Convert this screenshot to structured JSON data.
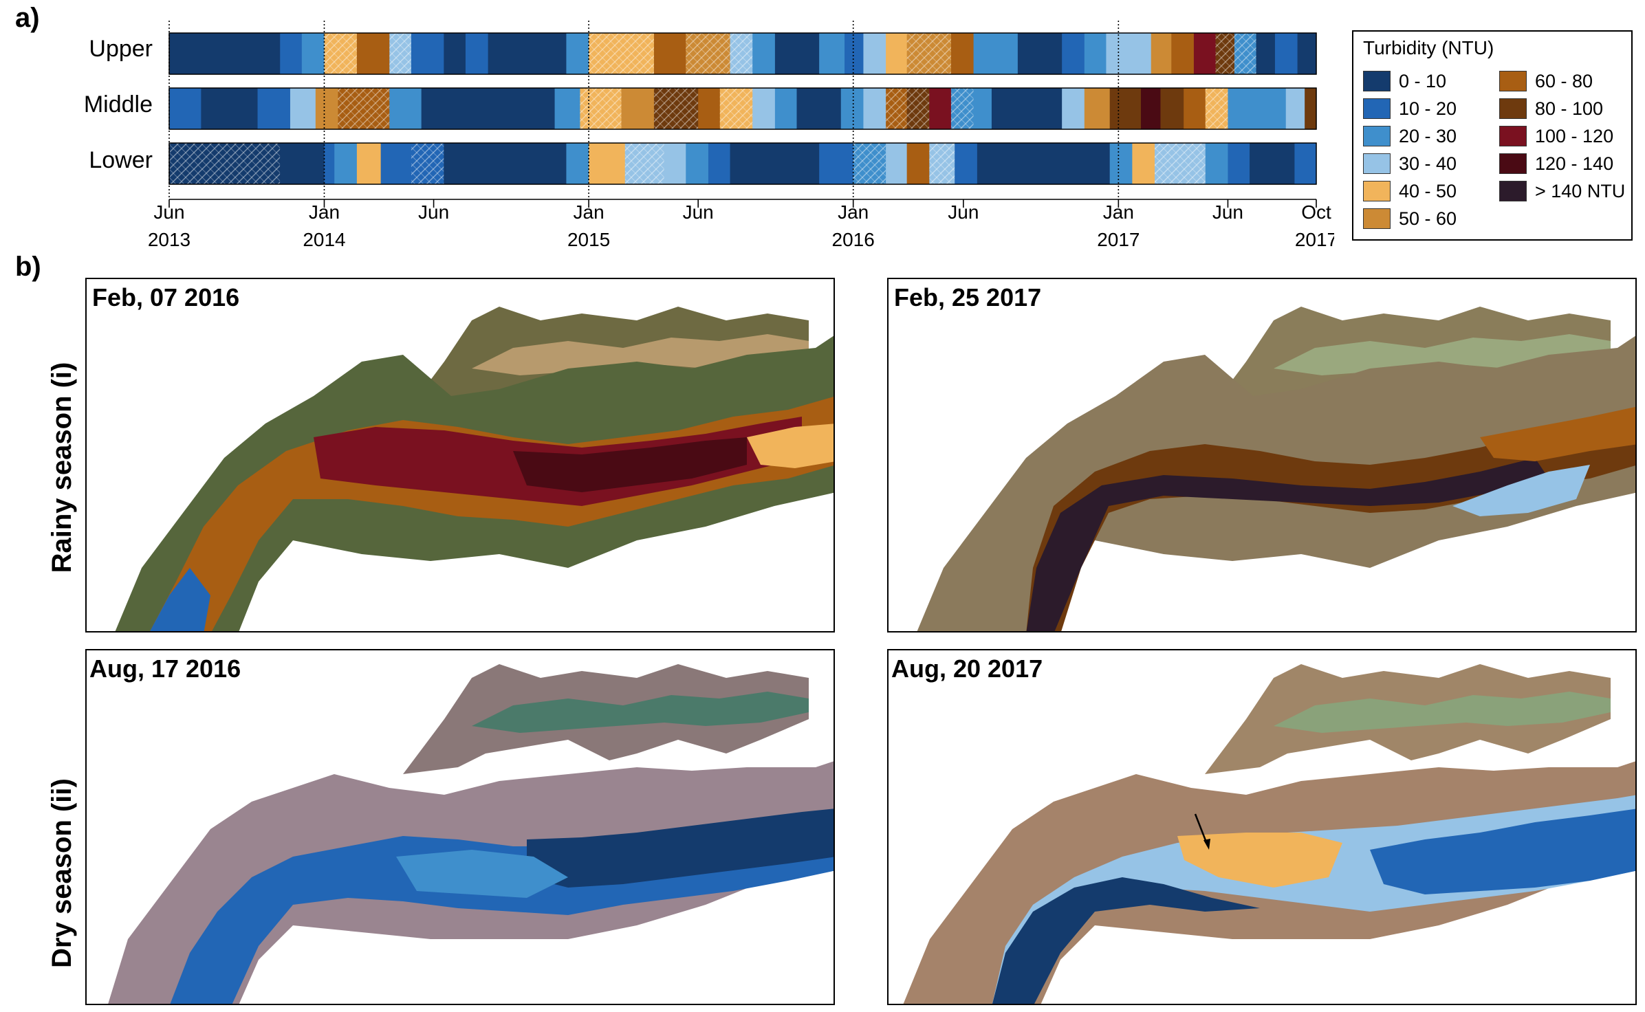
{
  "panel_a_label": "a)",
  "panel_b_label": "b)",
  "chart_data": {
    "type": "heatmap",
    "title": "",
    "rows": [
      "Upper",
      "Middle",
      "Lower"
    ],
    "x_range": [
      "2013-06",
      "2017-10"
    ],
    "x_ticks": [
      {
        "date": "2013-06-01",
        "month": "Jun",
        "year": "2013"
      },
      {
        "date": "2014-01-01",
        "month": "Jan",
        "year": "2014"
      },
      {
        "date": "2014-06-01",
        "month": "Jun",
        "year": ""
      },
      {
        "date": "2015-01-01",
        "month": "Jan",
        "year": "2015"
      },
      {
        "date": "2015-06-01",
        "month": "Jun",
        "year": ""
      },
      {
        "date": "2016-01-01",
        "month": "Jan",
        "year": "2016"
      },
      {
        "date": "2016-06-01",
        "month": "Jun",
        "year": ""
      },
      {
        "date": "2017-01-01",
        "month": "Jan",
        "year": "2017"
      },
      {
        "date": "2017-06-01",
        "month": "Jun",
        "year": ""
      },
      {
        "date": "2017-10-01",
        "month": "Oct",
        "year": "2017"
      }
    ],
    "year_boundaries": [
      "2014-01-01",
      "2015-01-01",
      "2016-01-01",
      "2017-01-01"
    ],
    "classes": [
      {
        "label": "0 - 10",
        "color": "#143b6d"
      },
      {
        "label": "10 - 20",
        "color": "#2266b5"
      },
      {
        "label": "20 - 30",
        "color": "#3f8fcc"
      },
      {
        "label": "30 - 40",
        "color": "#96c3e6"
      },
      {
        "label": "40 - 50",
        "color": "#f1b45b"
      },
      {
        "label": "50 - 60",
        "color": "#cc8a35"
      },
      {
        "label": "60 - 80",
        "color": "#a85e13"
      },
      {
        "label": "80 - 100",
        "color": "#6e3a0e"
      },
      {
        "label": "100 - 120",
        "color": "#7a1120"
      },
      {
        "label": "120 - 140",
        "color": "#4a0a14"
      },
      {
        "label": "> 140 NTU",
        "color": "#2c1b2b"
      }
    ],
    "series": [
      {
        "name": "Upper",
        "segments": [
          {
            "start": "2013-06-01",
            "end": "2013-11-01",
            "class": 0
          },
          {
            "start": "2013-11-01",
            "end": "2013-12-01",
            "class": 1
          },
          {
            "start": "2013-12-01",
            "end": "2014-01-01",
            "class": 2
          },
          {
            "start": "2014-01-01",
            "end": "2014-02-15",
            "class": 4,
            "hatched": true
          },
          {
            "start": "2014-02-15",
            "end": "2014-04-01",
            "class": 6
          },
          {
            "start": "2014-04-01",
            "end": "2014-05-01",
            "class": 3,
            "hatched": true
          },
          {
            "start": "2014-05-01",
            "end": "2014-06-15",
            "class": 1
          },
          {
            "start": "2014-06-15",
            "end": "2014-07-15",
            "class": 0
          },
          {
            "start": "2014-07-15",
            "end": "2014-08-15",
            "class": 1
          },
          {
            "start": "2014-08-15",
            "end": "2014-12-01",
            "class": 0
          },
          {
            "start": "2014-12-01",
            "end": "2015-01-01",
            "class": 2
          },
          {
            "start": "2015-01-01",
            "end": "2015-04-01",
            "class": 4,
            "hatched": true
          },
          {
            "start": "2015-04-01",
            "end": "2015-05-15",
            "class": 6
          },
          {
            "start": "2015-05-15",
            "end": "2015-07-15",
            "class": 5,
            "hatched": true
          },
          {
            "start": "2015-07-15",
            "end": "2015-08-15",
            "class": 3,
            "hatched": true
          },
          {
            "start": "2015-08-15",
            "end": "2015-09-15",
            "class": 2
          },
          {
            "start": "2015-09-15",
            "end": "2015-11-15",
            "class": 0
          },
          {
            "start": "2015-11-15",
            "end": "2015-12-20",
            "class": 2
          },
          {
            "start": "2015-12-20",
            "end": "2016-01-15",
            "class": 1
          },
          {
            "start": "2016-01-15",
            "end": "2016-02-15",
            "class": 3
          },
          {
            "start": "2016-02-15",
            "end": "2016-03-15",
            "class": 4
          },
          {
            "start": "2016-03-15",
            "end": "2016-05-15",
            "class": 5,
            "hatched": true
          },
          {
            "start": "2016-05-15",
            "end": "2016-06-15",
            "class": 6
          },
          {
            "start": "2016-06-15",
            "end": "2016-08-15",
            "class": 2
          },
          {
            "start": "2016-08-15",
            "end": "2016-10-15",
            "class": 0
          },
          {
            "start": "2016-10-15",
            "end": "2016-11-15",
            "class": 1
          },
          {
            "start": "2016-11-15",
            "end": "2016-12-15",
            "class": 2
          },
          {
            "start": "2016-12-15",
            "end": "2017-02-15",
            "class": 3
          },
          {
            "start": "2017-02-15",
            "end": "2017-03-15",
            "class": 5
          },
          {
            "start": "2017-03-15",
            "end": "2017-04-15",
            "class": 6
          },
          {
            "start": "2017-04-15",
            "end": "2017-05-15",
            "class": 8
          },
          {
            "start": "2017-05-15",
            "end": "2017-06-10",
            "class": 7,
            "hatched": true
          },
          {
            "start": "2017-06-10",
            "end": "2017-07-10",
            "class": 2,
            "hatched": true
          },
          {
            "start": "2017-07-10",
            "end": "2017-08-05",
            "class": 0
          },
          {
            "start": "2017-08-05",
            "end": "2017-09-05",
            "class": 1
          },
          {
            "start": "2017-09-05",
            "end": "2017-10-01",
            "class": 0
          }
        ]
      },
      {
        "name": "Middle",
        "segments": [
          {
            "start": "2013-06-01",
            "end": "2013-07-15",
            "class": 1
          },
          {
            "start": "2013-07-15",
            "end": "2013-10-01",
            "class": 0
          },
          {
            "start": "2013-10-01",
            "end": "2013-11-15",
            "class": 1
          },
          {
            "start": "2013-11-15",
            "end": "2013-12-20",
            "class": 3
          },
          {
            "start": "2013-12-20",
            "end": "2014-01-20",
            "class": 5
          },
          {
            "start": "2014-01-20",
            "end": "2014-04-01",
            "class": 6,
            "hatched": true
          },
          {
            "start": "2014-04-01",
            "end": "2014-05-15",
            "class": 2
          },
          {
            "start": "2014-05-15",
            "end": "2014-11-15",
            "class": 0
          },
          {
            "start": "2014-11-15",
            "end": "2014-12-20",
            "class": 2
          },
          {
            "start": "2014-12-20",
            "end": "2015-02-15",
            "class": 4,
            "hatched": true
          },
          {
            "start": "2015-02-15",
            "end": "2015-04-01",
            "class": 5
          },
          {
            "start": "2015-04-01",
            "end": "2015-06-01",
            "class": 7,
            "hatched": true
          },
          {
            "start": "2015-06-01",
            "end": "2015-07-01",
            "class": 6
          },
          {
            "start": "2015-07-01",
            "end": "2015-08-15",
            "class": 4,
            "hatched": true
          },
          {
            "start": "2015-08-15",
            "end": "2015-09-15",
            "class": 3
          },
          {
            "start": "2015-09-15",
            "end": "2015-10-15",
            "class": 2
          },
          {
            "start": "2015-10-15",
            "end": "2015-12-15",
            "class": 0
          },
          {
            "start": "2015-12-15",
            "end": "2016-01-15",
            "class": 2
          },
          {
            "start": "2016-01-15",
            "end": "2016-02-15",
            "class": 3
          },
          {
            "start": "2016-02-15",
            "end": "2016-03-15",
            "class": 6,
            "hatched": true
          },
          {
            "start": "2016-03-15",
            "end": "2016-04-15",
            "class": 7,
            "hatched": true
          },
          {
            "start": "2016-04-15",
            "end": "2016-05-15",
            "class": 8
          },
          {
            "start": "2016-05-15",
            "end": "2016-06-15",
            "class": 2,
            "hatched": true
          },
          {
            "start": "2016-06-15",
            "end": "2016-07-10",
            "class": 2
          },
          {
            "start": "2016-07-10",
            "end": "2016-10-15",
            "class": 0
          },
          {
            "start": "2016-10-15",
            "end": "2016-11-15",
            "class": 3
          },
          {
            "start": "2016-11-15",
            "end": "2016-12-20",
            "class": 5
          },
          {
            "start": "2016-12-20",
            "end": "2017-02-01",
            "class": 7
          },
          {
            "start": "2017-02-01",
            "end": "2017-02-28",
            "class": 9
          },
          {
            "start": "2017-02-28",
            "end": "2017-04-01",
            "class": 7
          },
          {
            "start": "2017-04-01",
            "end": "2017-05-01",
            "class": 6
          },
          {
            "start": "2017-05-01",
            "end": "2017-06-01",
            "class": 4,
            "hatched": true
          },
          {
            "start": "2017-06-01",
            "end": "2017-08-20",
            "class": 2
          },
          {
            "start": "2017-08-20",
            "end": "2017-09-15",
            "class": 3
          },
          {
            "start": "2017-09-15",
            "end": "2017-10-01",
            "class": 7
          }
        ]
      },
      {
        "name": "Lower",
        "segments": [
          {
            "start": "2013-06-01",
            "end": "2013-11-01",
            "class": 0,
            "hatched": true
          },
          {
            "start": "2013-11-01",
            "end": "2014-01-01",
            "class": 0
          },
          {
            "start": "2014-01-01",
            "end": "2014-01-15",
            "class": 1
          },
          {
            "start": "2014-01-15",
            "end": "2014-02-15",
            "class": 2
          },
          {
            "start": "2014-02-15",
            "end": "2014-03-20",
            "class": 4
          },
          {
            "start": "2014-03-20",
            "end": "2014-05-01",
            "class": 1
          },
          {
            "start": "2014-05-01",
            "end": "2014-06-15",
            "class": 1,
            "hatched": true
          },
          {
            "start": "2014-06-15",
            "end": "2014-12-01",
            "class": 0
          },
          {
            "start": "2014-12-01",
            "end": "2015-01-01",
            "class": 2
          },
          {
            "start": "2015-01-01",
            "end": "2015-02-20",
            "class": 4
          },
          {
            "start": "2015-02-20",
            "end": "2015-04-15",
            "class": 3,
            "hatched": true
          },
          {
            "start": "2015-04-15",
            "end": "2015-05-15",
            "class": 3
          },
          {
            "start": "2015-05-15",
            "end": "2015-06-15",
            "class": 2
          },
          {
            "start": "2015-06-15",
            "end": "2015-07-15",
            "class": 1
          },
          {
            "start": "2015-07-15",
            "end": "2015-11-15",
            "class": 0
          },
          {
            "start": "2015-11-15",
            "end": "2016-01-01",
            "class": 1
          },
          {
            "start": "2016-01-01",
            "end": "2016-02-15",
            "class": 2,
            "hatched": true
          },
          {
            "start": "2016-02-15",
            "end": "2016-03-15",
            "class": 3
          },
          {
            "start": "2016-03-15",
            "end": "2016-04-15",
            "class": 6
          },
          {
            "start": "2016-04-15",
            "end": "2016-05-20",
            "class": 3,
            "hatched": true
          },
          {
            "start": "2016-05-20",
            "end": "2016-06-20",
            "class": 1
          },
          {
            "start": "2016-06-20",
            "end": "2016-12-20",
            "class": 0
          },
          {
            "start": "2016-12-20",
            "end": "2017-01-20",
            "class": 2
          },
          {
            "start": "2017-01-20",
            "end": "2017-02-20",
            "class": 4
          },
          {
            "start": "2017-02-20",
            "end": "2017-05-01",
            "class": 3,
            "hatched": true
          },
          {
            "start": "2017-05-01",
            "end": "2017-06-01",
            "class": 2
          },
          {
            "start": "2017-06-01",
            "end": "2017-07-01",
            "class": 1
          },
          {
            "start": "2017-07-01",
            "end": "2017-09-01",
            "class": 0
          },
          {
            "start": "2017-09-01",
            "end": "2017-10-01",
            "class": 1
          }
        ]
      }
    ]
  },
  "legend": {
    "title": "Turbidity (NTU)",
    "items": [
      "0 - 10",
      "10 - 20",
      "20 - 30",
      "30 - 40",
      "40 - 50",
      "50 - 60",
      "60 - 80",
      "80 - 100",
      "100 - 120",
      "120 - 140",
      "> 140 NTU"
    ]
  },
  "maps": {
    "rainy_label": "Rainy season (i)",
    "dry_label": "Dry season (ii)",
    "panels": [
      {
        "date": "Feb, 07 2016",
        "dominant_class": "100 - 120"
      },
      {
        "date": "Feb, 25 2017",
        "dominant_class": "80 - 100"
      },
      {
        "date": "Aug, 17 2016",
        "dominant_class": "10 - 20"
      },
      {
        "date": "Aug, 20 2017",
        "dominant_class": "30 - 40"
      }
    ]
  }
}
